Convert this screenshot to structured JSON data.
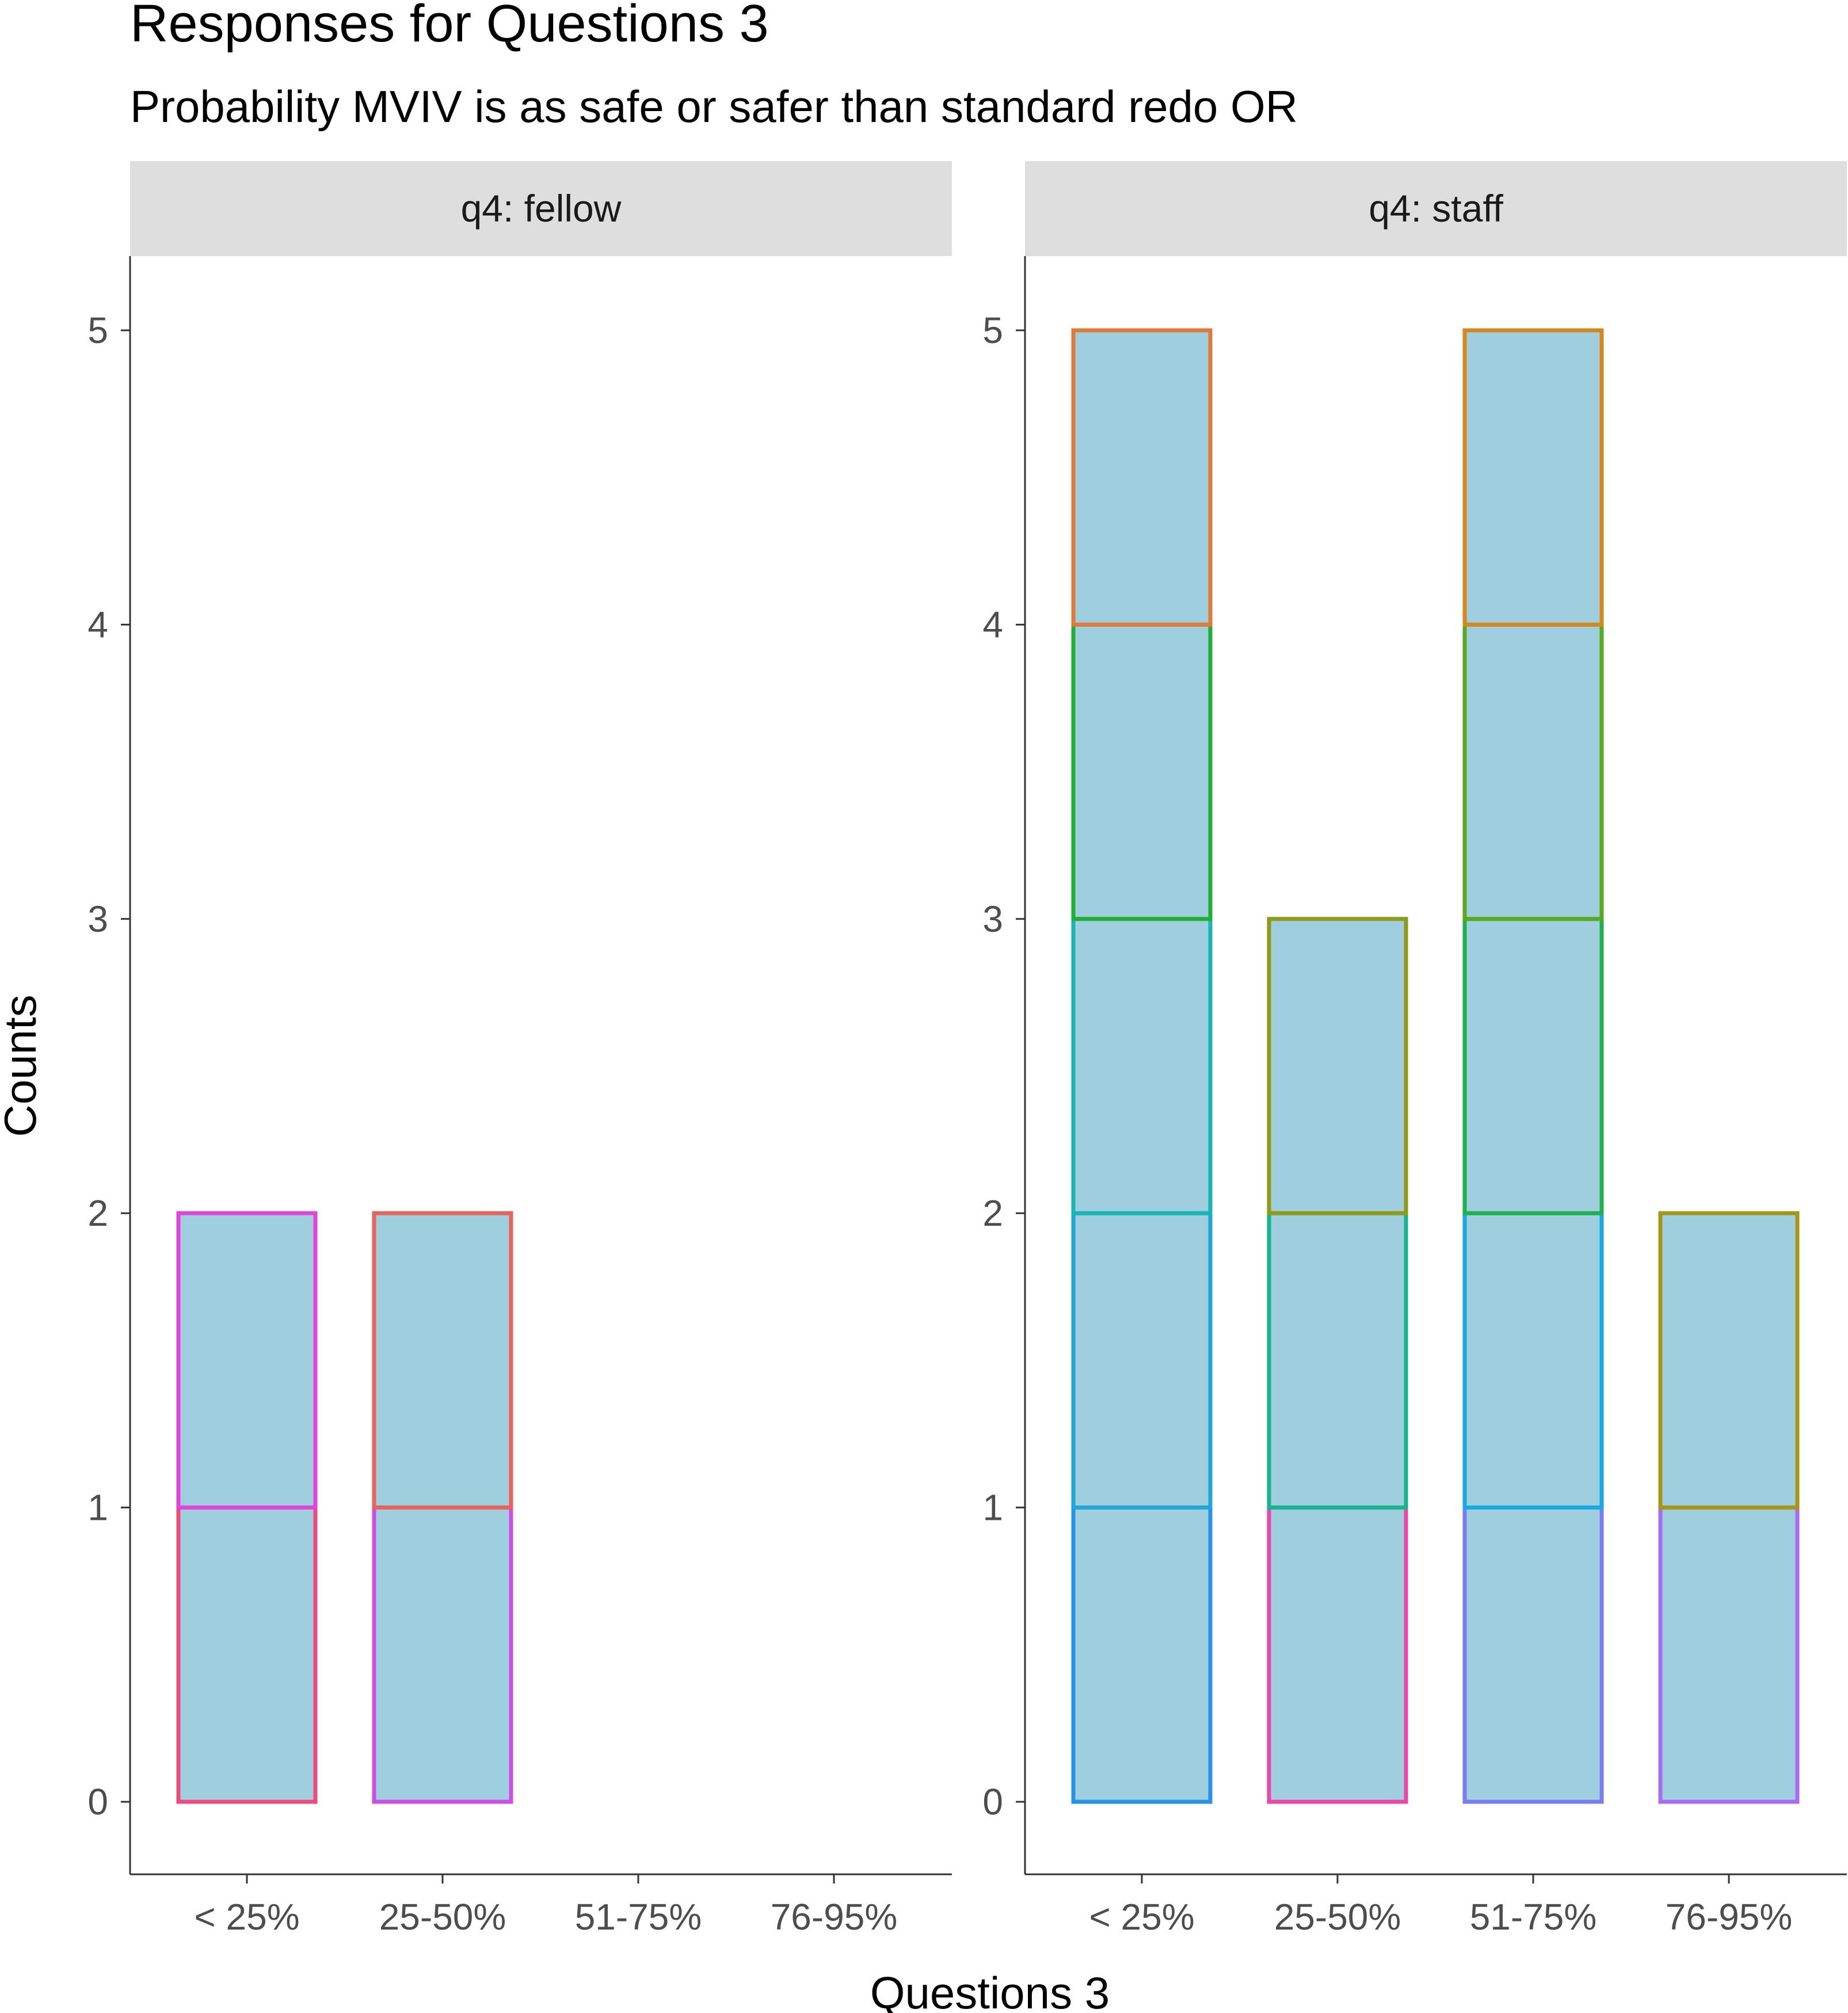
{
  "chart_data": {
    "type": "bar",
    "title": "Responses for Questions 3",
    "subtitle": "Probability MVIV is as safe or safer than standard redo OR",
    "xlabel": "Questions 3",
    "ylabel": "Counts",
    "categories": [
      "< 25%",
      "25-50%",
      "51-75%",
      "76-95%"
    ],
    "ylim": [
      0,
      5
    ],
    "yticks": [
      0,
      1,
      2,
      3,
      4,
      5
    ],
    "grid": false,
    "fill_color": "#9fcfdf",
    "panels": [
      {
        "label": "q4: fellow",
        "totals": [
          2,
          2,
          0,
          0
        ],
        "stacks": [
          {
            "category": "< 25%",
            "segment_colors": [
              "#ee4b7b",
              "#e044d9"
            ]
          },
          {
            "category": "25-50%",
            "segment_colors": [
              "#cc4ee6",
              "#e8645a"
            ]
          },
          {
            "category": "51-75%",
            "segment_colors": []
          },
          {
            "category": "76-95%",
            "segment_colors": []
          }
        ]
      },
      {
        "label": "q4: staff",
        "totals": [
          5,
          3,
          5,
          2
        ],
        "stacks": [
          {
            "category": "< 25%",
            "segment_colors": [
              "#2394e8",
              "#1fa7d9",
              "#19b4b4",
              "#1fb033",
              "#e07a3a"
            ]
          },
          {
            "category": "25-50%",
            "segment_colors": [
              "#ee45a8",
              "#19b38e",
              "#8f9a16"
            ]
          },
          {
            "category": "51-75%",
            "segment_colors": [
              "#7a7cf0",
              "#18a9e5",
              "#21b04e",
              "#5aa820",
              "#d4881e"
            ]
          },
          {
            "category": "76-95%",
            "segment_colors": [
              "#a86bf2",
              "#a69516"
            ]
          }
        ]
      }
    ]
  }
}
